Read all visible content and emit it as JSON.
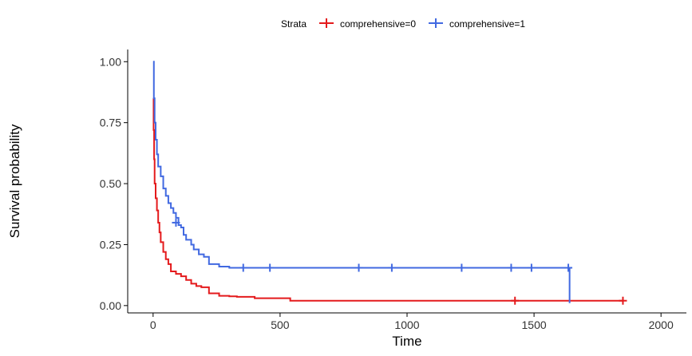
{
  "chart_data": {
    "type": "line",
    "subtype": "kaplan-meier",
    "xlabel": "Time",
    "ylabel": "Survival probability",
    "xlim": [
      -100,
      2100
    ],
    "ylim": [
      -0.03,
      1.05
    ],
    "x_ticks": [
      0,
      500,
      1000,
      1500,
      2000
    ],
    "x_tick_labels": [
      "0",
      "500",
      "1000",
      "1500",
      "2000"
    ],
    "y_ticks": [
      0,
      0.25,
      0.5,
      0.75,
      1.0
    ],
    "y_tick_labels": [
      "0.00",
      "0.25",
      "0.50",
      "0.75",
      "1.00"
    ],
    "legend": {
      "title": "Strata",
      "position": "top",
      "entries": [
        "comprehensive=0",
        "comprehensive=1"
      ]
    },
    "grid": false,
    "series": [
      {
        "name": "comprehensive=0",
        "color": "#e41a1c",
        "steps": [
          [
            0,
            0.85
          ],
          [
            2,
            0.72
          ],
          [
            4,
            0.6
          ],
          [
            6,
            0.5
          ],
          [
            10,
            0.44
          ],
          [
            15,
            0.39
          ],
          [
            20,
            0.34
          ],
          [
            25,
            0.3
          ],
          [
            30,
            0.26
          ],
          [
            40,
            0.22
          ],
          [
            50,
            0.19
          ],
          [
            60,
            0.17
          ],
          [
            70,
            0.14
          ],
          [
            90,
            0.13
          ],
          [
            110,
            0.12
          ],
          [
            130,
            0.105
          ],
          [
            150,
            0.09
          ],
          [
            170,
            0.08
          ],
          [
            190,
            0.075
          ],
          [
            220,
            0.05
          ],
          [
            260,
            0.04
          ],
          [
            300,
            0.038
          ],
          [
            330,
            0.036
          ],
          [
            400,
            0.03
          ],
          [
            540,
            0.02
          ],
          [
            1850,
            0.02
          ]
        ],
        "censored": [
          [
            1425,
            0.02
          ],
          [
            1850,
            0.02
          ]
        ]
      },
      {
        "name": "comprehensive=1",
        "color": "#4169e1",
        "steps": [
          [
            0,
            1.0
          ],
          [
            3,
            0.85
          ],
          [
            6,
            0.75
          ],
          [
            10,
            0.68
          ],
          [
            15,
            0.62
          ],
          [
            20,
            0.57
          ],
          [
            30,
            0.53
          ],
          [
            40,
            0.48
          ],
          [
            50,
            0.45
          ],
          [
            60,
            0.42
          ],
          [
            70,
            0.4
          ],
          [
            80,
            0.38
          ],
          [
            90,
            0.36
          ],
          [
            100,
            0.33
          ],
          [
            110,
            0.32
          ],
          [
            120,
            0.29
          ],
          [
            130,
            0.27
          ],
          [
            150,
            0.25
          ],
          [
            160,
            0.23
          ],
          [
            180,
            0.21
          ],
          [
            200,
            0.2
          ],
          [
            220,
            0.17
          ],
          [
            260,
            0.16
          ],
          [
            300,
            0.155
          ],
          [
            1640,
            0.155
          ],
          [
            1640,
            0.01
          ]
        ],
        "censored": [
          [
            90,
            0.34
          ],
          [
            355,
            0.155
          ],
          [
            460,
            0.155
          ],
          [
            810,
            0.155
          ],
          [
            940,
            0.155
          ],
          [
            1215,
            0.155
          ],
          [
            1410,
            0.155
          ],
          [
            1490,
            0.155
          ],
          [
            1635,
            0.155
          ]
        ]
      }
    ]
  }
}
